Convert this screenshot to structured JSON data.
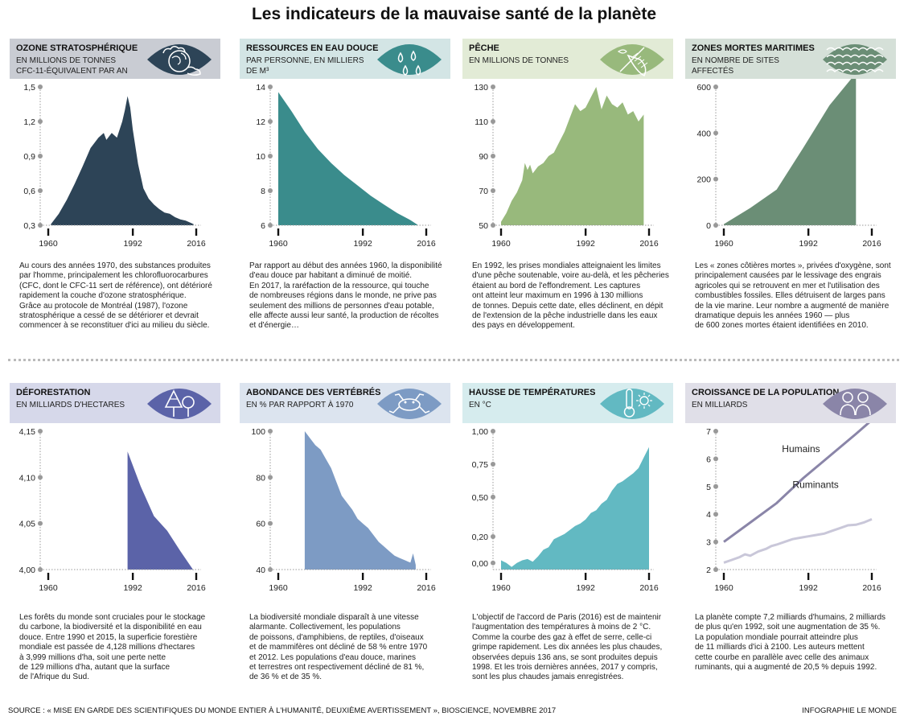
{
  "title": "Les indicateurs de la mauvaise santé de la planète",
  "source": "SOURCE : « MISE EN GARDE DES SCIENTIFIQUES DU MONDE ENTIER À L'HUMANITÉ, DEUXIÈME AVERTISSEMENT », BIOSCIENCE, NOVEMBRE 2017",
  "credit": "INFOGRAPHIE LE MONDE",
  "chart_data": [
    {
      "type": "area",
      "title": "OZONE STRATOSPHÉRIQUE",
      "unit": "EN MILLIONS DE TONNES CFC-11-ÉQUIVALENT PAR AN",
      "color": "#2d4457",
      "header_color": "#c9ccd3",
      "icon": "earth-cloud-icon",
      "xlim": [
        1960,
        2016
      ],
      "ylim": [
        0.3,
        1.5
      ],
      "yticks": [
        0.3,
        0.6,
        0.9,
        1.2,
        1.5
      ],
      "ytick_labels": [
        "0,3",
        "0,6",
        "0,9",
        "1,2",
        "1,5"
      ],
      "xticks": [
        1960,
        1992,
        2016
      ],
      "xtick_labels": [
        "1960",
        "1992",
        "2016"
      ],
      "x": [
        1961,
        1964,
        1967,
        1970,
        1973,
        1976,
        1979,
        1981,
        1982,
        1984,
        1986,
        1988,
        1989,
        1990,
        1991,
        1992,
        1994,
        1996,
        1998,
        2000,
        2002,
        2004,
        2006,
        2008,
        2010,
        2012,
        2014,
        2015
      ],
      "y": [
        0.31,
        0.4,
        0.52,
        0.66,
        0.81,
        0.97,
        1.06,
        1.1,
        1.04,
        1.1,
        1.06,
        1.2,
        1.3,
        1.42,
        1.32,
        1.13,
        0.83,
        0.62,
        0.53,
        0.48,
        0.44,
        0.41,
        0.4,
        0.37,
        0.35,
        0.34,
        0.32,
        0.31
      ],
      "text": "Au cours des années 1970, des substances produites\npar l'homme, principalement les chlorofluorocarbures\n(CFC, dont le CFC-11 sert de référence), ont détérioré\nrapidement la couche d'ozone stratosphérique.\nGrâce au protocole de Montréal (1987), l'ozone\nstratosphérique a cessé de se détériorer et devrait\ncommencer à se reconstituer d'ici au milieu du siècle."
    },
    {
      "type": "area",
      "title": "RESSOURCES EN EAU DOUCE",
      "unit": "PAR PERSONNE, EN MILLIERS DE M³",
      "color": "#3a8c8c",
      "header_color": "#d3e5e5",
      "icon": "water-drops-icon",
      "xlim": [
        1960,
        2016
      ],
      "ylim": [
        6,
        14
      ],
      "yticks": [
        6,
        8,
        10,
        12,
        14
      ],
      "ytick_labels": [
        "6",
        "8",
        "10",
        "12",
        "14"
      ],
      "xticks": [
        1960,
        1992,
        2016
      ],
      "xtick_labels": [
        "1960",
        "1992",
        "2016"
      ],
      "x": [
        1960,
        1965,
        1970,
        1975,
        1980,
        1985,
        1990,
        1995,
        2000,
        2005,
        2010,
        2013
      ],
      "y": [
        13.7,
        12.6,
        11.4,
        10.4,
        9.6,
        8.9,
        8.3,
        7.7,
        7.2,
        6.7,
        6.3,
        6.0
      ],
      "text": "Par rapport au début des années 1960, la disponibilité\nd'eau douce par habitant a diminué de moitié.\nEn 2017, la raréfaction de la ressource, qui touche\nde nombreuses régions dans le monde, ne prive pas\nseulement des millions de personnes d'eau potable,\nelle affecte aussi leur santé, la production de récoltes\net d'énergie…"
    },
    {
      "type": "area",
      "title": "PÊCHE",
      "unit": "EN MILLIONS DE TONNES",
      "color": "#98b97c",
      "header_color": "#e2ebd6",
      "icon": "fishing-net-icon",
      "xlim": [
        1960,
        2016
      ],
      "ylim": [
        50,
        130
      ],
      "yticks": [
        50,
        70,
        90,
        110,
        130
      ],
      "ytick_labels": [
        "50",
        "70",
        "90",
        "110",
        "130"
      ],
      "xticks": [
        1960,
        1992,
        2016
      ],
      "xtick_labels": [
        "1960",
        "1992",
        "2016"
      ],
      "x": [
        1960,
        1962,
        1964,
        1966,
        1968,
        1969,
        1970,
        1971,
        1972,
        1974,
        1976,
        1978,
        1980,
        1982,
        1984,
        1986,
        1988,
        1989,
        1990,
        1992,
        1994,
        1996,
        1998,
        2000,
        2002,
        2004,
        2006,
        2008,
        2010,
        2012,
        2014
      ],
      "y": [
        52,
        57,
        64,
        69,
        76,
        86,
        82,
        85,
        80,
        84,
        86,
        90,
        92,
        98,
        104,
        112,
        120,
        118,
        116,
        118,
        124,
        130,
        117,
        125,
        120,
        118,
        121,
        114,
        116,
        110,
        114
      ],
      "text": "En 1992, les prises mondiales atteignaient les limites\nd'une pêche soutenable, voire au-delà, et les pêcheries\nétaient au bord de l'effondrement. Les captures\nont atteint leur maximum en 1996 à 130 millions\nde tonnes. Depuis cette date, elles déclinent, en dépit\nde l'extension de la pêche industrielle dans les eaux\ndes pays en développement."
    },
    {
      "type": "area",
      "title": "ZONES MORTES MARITIMES",
      "unit": "EN NOMBRE DE SITES AFFECTÉS",
      "color": "#6b8e76",
      "header_color": "#d5e0d8",
      "icon": "waves-icon",
      "xlim": [
        1960,
        2016
      ],
      "ylim": [
        0,
        600
      ],
      "yticks": [
        0,
        200,
        400,
        600
      ],
      "ytick_labels": [
        "0",
        "200",
        "400",
        "600"
      ],
      "xticks": [
        1960,
        1992,
        2016
      ],
      "xtick_labels": [
        "1960",
        "1992",
        "2016"
      ],
      "x": [
        1960,
        1970,
        1980,
        1990,
        2000,
        2010
      ],
      "y": [
        5,
        75,
        155,
        335,
        520,
        660
      ],
      "text": "Les « zones côtières mortes », privées d'oxygène, sont\nprincipalement causées par le lessivage des engrais\nagricoles qui se retrouvent en mer et l'utilisation des\ncombustibles fossiles. Elles détruisent de larges pans\nde la vie marine. Leur nombre a augmenté de manière\ndramatique depuis les années 1960 — plus\nde 600 zones mortes étaient identifiées en 2010."
    },
    {
      "type": "area",
      "title": "DÉFORESTATION",
      "unit": "EN MILLIARDS D'HECTARES",
      "color": "#5b63a8",
      "header_color": "#d6d8ea",
      "icon": "trees-icon",
      "xlim": [
        1960,
        2016
      ],
      "ylim": [
        4.0,
        4.15
      ],
      "yticks": [
        4.0,
        4.05,
        4.1,
        4.15
      ],
      "ytick_labels": [
        "4,00",
        "4,05",
        "4,10",
        "4,15"
      ],
      "xticks": [
        1960,
        1992,
        2016
      ],
      "xtick_labels": [
        "1960",
        "1992",
        "2016"
      ],
      "x": [
        1990,
        1995,
        2000,
        2005,
        2010,
        2015
      ],
      "y": [
        4.128,
        4.09,
        4.058,
        4.042,
        4.02,
        3.999
      ],
      "text": "Les forêts du monde sont cruciales pour le stockage\ndu carbone, la biodiversité et la disponibilité en eau\ndouce. Entre 1990 et 2015, la superficie forestière\nmondiale est passée de 4,128 millions d'hectares\nà 3,999 millions d'ha, soit une perte nette\nde 129 millions d'ha, autant que la surface\nde l'Afrique du Sud."
    },
    {
      "type": "area",
      "title": "ABONDANCE DES VERTÉBRÉS",
      "unit": "EN % PAR RAPPORT À 1970",
      "color": "#7d9bc4",
      "header_color": "#dce4ef",
      "icon": "frog-icon",
      "xlim": [
        1960,
        2016
      ],
      "ylim": [
        40,
        100
      ],
      "yticks": [
        40,
        60,
        80,
        100
      ],
      "ytick_labels": [
        "40",
        "60",
        "80",
        "100"
      ],
      "xticks": [
        1960,
        1992,
        2016
      ],
      "xtick_labels": [
        "1960",
        "1992",
        "2016"
      ],
      "x": [
        1970,
        1972,
        1974,
        1976,
        1978,
        1980,
        1982,
        1984,
        1986,
        1988,
        1990,
        1992,
        1994,
        1996,
        1998,
        2000,
        2002,
        2004,
        2006,
        2008,
        2010,
        2011,
        2012
      ],
      "y": [
        100,
        97,
        94,
        92,
        88,
        84,
        78,
        72,
        69,
        66,
        62,
        60,
        58,
        55,
        52,
        50,
        48,
        46,
        45,
        44,
        43,
        47,
        42
      ],
      "text": "La biodiversité mondiale disparaît à une vitesse\nalarmante. Collectivement, les populations\nde poissons, d'amphibiens, de reptiles, d'oiseaux\net de mammifères ont décliné de 58 % entre 1970\net 2012. Les populations d'eau douce, marines\net terrestres ont respectivement décliné de 81 %,\nde 36 % et de 35 %."
    },
    {
      "type": "area",
      "title": "HAUSSE DE TEMPÉRATURES",
      "unit": "EN °C",
      "color": "#62b9c2",
      "header_color": "#d6ecee",
      "icon": "thermometer-sun-icon",
      "xlim": [
        1960,
        2016
      ],
      "ylim": [
        -0.05,
        1.0
      ],
      "yticks": [
        0.0,
        0.2,
        0.5,
        0.75,
        1.0
      ],
      "ytick_labels": [
        "0,00",
        "0,20",
        "0,50",
        "0,75",
        "1,00"
      ],
      "xticks": [
        1960,
        1992,
        2016
      ],
      "xtick_labels": [
        "1960",
        "1992",
        "2016"
      ],
      "x": [
        1960,
        1962,
        1964,
        1966,
        1968,
        1970,
        1972,
        1974,
        1976,
        1978,
        1980,
        1982,
        1984,
        1986,
        1988,
        1990,
        1992,
        1994,
        1996,
        1998,
        2000,
        2002,
        2004,
        2006,
        2008,
        2010,
        2012,
        2014,
        2016
      ],
      "y": [
        0.02,
        0.0,
        -0.03,
        0.0,
        0.02,
        0.03,
        0.01,
        0.05,
        0.1,
        0.12,
        0.18,
        0.2,
        0.22,
        0.25,
        0.28,
        0.3,
        0.33,
        0.38,
        0.4,
        0.45,
        0.48,
        0.55,
        0.6,
        0.62,
        0.65,
        0.68,
        0.72,
        0.8,
        0.88
      ],
      "text": "L'objectif de l'accord de Paris (2016) est de maintenir\nl'augmentation des températures à moins de 2 °C.\nComme la courbe des gaz à effet de serre, celle-ci\ngrimpe rapidement. Les dix années les plus chaudes,\nobservées depuis 136 ans, se sont produites depuis\n1998. Et les trois dernières années, 2017 y compris,\nsont les plus chaudes jamais enregistrées."
    },
    {
      "type": "line",
      "title": "CROISSANCE DE LA POPULATION",
      "unit": "EN MILLIARDS",
      "color": "#8a85a8",
      "header_color": "#e0dfe8",
      "icon": "people-icon",
      "xlim": [
        1960,
        2016
      ],
      "ylim": [
        2,
        7
      ],
      "yticks": [
        2,
        3,
        4,
        5,
        6,
        7
      ],
      "ytick_labels": [
        "2",
        "3",
        "4",
        "5",
        "6",
        "7"
      ],
      "xticks": [
        1960,
        1992,
        2016
      ],
      "xtick_labels": [
        "1960",
        "1992",
        "2016"
      ],
      "series": [
        {
          "name": "Humains",
          "color": "#8a85a8",
          "x": [
            1960,
            1970,
            1980,
            1990,
            2000,
            2010,
            2016
          ],
          "y": [
            3.0,
            3.7,
            4.4,
            5.3,
            6.1,
            6.9,
            7.4
          ]
        },
        {
          "name": "Ruminants",
          "color": "#c9c7d9",
          "x": [
            1960,
            1963,
            1966,
            1968,
            1970,
            1973,
            1976,
            1978,
            1980,
            1983,
            1986,
            1989,
            1992,
            1995,
            1998,
            2001,
            2004,
            2007,
            2010,
            2013,
            2016
          ],
          "y": [
            2.25,
            2.35,
            2.45,
            2.55,
            2.5,
            2.65,
            2.75,
            2.85,
            2.9,
            3.0,
            3.1,
            3.15,
            3.2,
            3.25,
            3.3,
            3.4,
            3.5,
            3.6,
            3.62,
            3.7,
            3.82
          ]
        }
      ],
      "text": "La planète compte 7,2 milliards d'humains, 2 milliards\nde plus qu'en 1992, soit une augmentation de 35 %.\nLa population mondiale pourrait atteindre plus\nde 11 milliards d'ici à 2100. Les auteurs mettent\ncette courbe en parallèle avec celle des animaux\nruminants, qui a augmenté de 20,5 % depuis 1992."
    }
  ]
}
